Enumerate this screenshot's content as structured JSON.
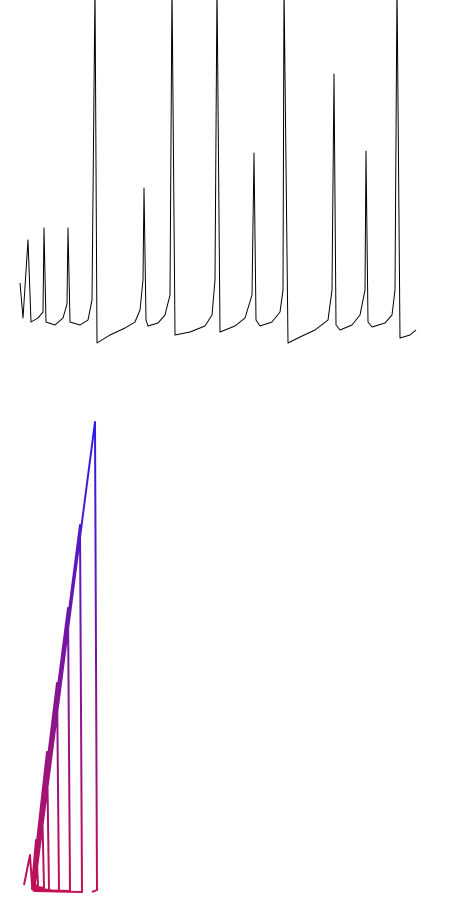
{
  "chart_data": [
    {
      "type": "line",
      "color": "#000000",
      "xlim": [
        0,
        450
      ],
      "ylim": [
        0,
        345
      ],
      "x": [
        20,
        23,
        28,
        31,
        38,
        43,
        44,
        46,
        55,
        63,
        67,
        68,
        70,
        80,
        88,
        92,
        95,
        97,
        110,
        125,
        135,
        140,
        143,
        144,
        146,
        148,
        158,
        165,
        170,
        172,
        175,
        190,
        205,
        212,
        215,
        217,
        220,
        235,
        245,
        252,
        254,
        256,
        260,
        272,
        280,
        283,
        284,
        288,
        300,
        315,
        328,
        332,
        334,
        336,
        340,
        352,
        360,
        365,
        366,
        368,
        372,
        385,
        392,
        395,
        397,
        400,
        410,
        416
      ],
      "values": [
        62,
        27,
        105,
        23,
        27,
        33,
        117,
        23,
        20,
        27,
        41,
        117,
        23,
        20,
        25,
        45,
        360,
        2,
        10,
        17,
        23,
        35,
        65,
        157,
        25,
        19,
        22,
        30,
        50,
        360,
        10,
        13,
        19,
        30,
        65,
        360,
        13,
        19,
        27,
        50,
        192,
        25,
        19,
        23,
        33,
        55,
        360,
        2,
        8,
        15,
        25,
        55,
        271,
        20,
        15,
        20,
        30,
        55,
        194,
        23,
        18,
        22,
        30,
        55,
        360,
        7,
        10,
        15
      ]
    },
    {
      "type": "line",
      "colors": [
        "#2a1cf0",
        "#c8104e"
      ],
      "xlim": [
        0,
        450
      ],
      "ylim": [
        0,
        480
      ],
      "x": [
        24,
        30,
        32,
        36,
        38,
        32,
        42,
        44,
        32,
        47,
        49,
        32,
        57,
        59,
        32,
        68,
        70,
        33,
        80,
        82,
        34,
        95,
        97,
        92
      ],
      "values": [
        15,
        45,
        15,
        60,
        15,
        14,
        100,
        12,
        14,
        148,
        10,
        12,
        217,
        9,
        11,
        292,
        9,
        10,
        375,
        8,
        9,
        478,
        10,
        8
      ]
    }
  ]
}
